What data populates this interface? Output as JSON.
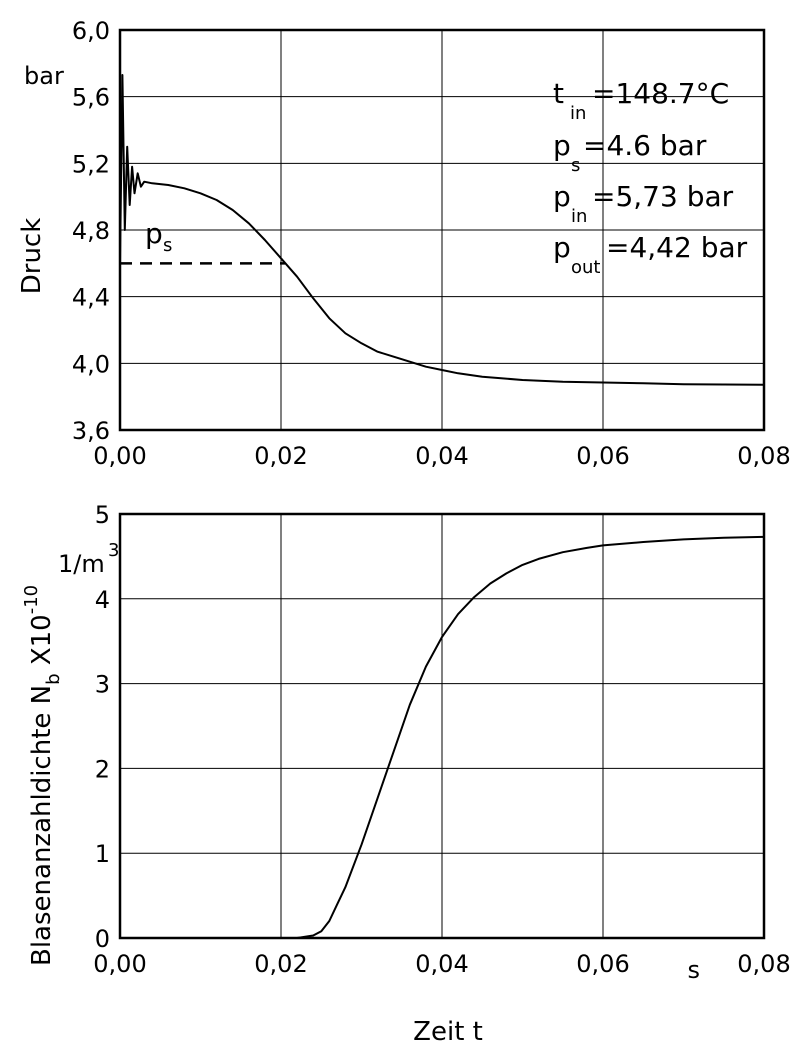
{
  "chart_data": [
    {
      "type": "line",
      "ylabel": "Druck",
      "yunit": "bar",
      "xlim": [
        0,
        0.08
      ],
      "ylim": [
        3.6,
        6.0
      ],
      "xticks": [
        "0,00",
        "0,02",
        "0,04",
        "0,06",
        "0,08"
      ],
      "yticks": [
        "3,6",
        "4,0",
        "4,4",
        "4,8",
        "5,2",
        "5,6",
        "6,0"
      ],
      "ps_label": {
        "base": "p",
        "sub": "s"
      },
      "ps_value": 4.6,
      "annotations": [
        {
          "base": "t",
          "sub": "in",
          "rest": "=148.7°C"
        },
        {
          "base": "p",
          "sub": "s",
          "rest": "=4.6 bar"
        },
        {
          "base": "p",
          "sub": "in",
          "rest": "=5,73 bar"
        },
        {
          "base": "p",
          "sub": "out",
          "rest": "=4,42 bar"
        }
      ],
      "series": [
        {
          "x": [
            0.0,
            0.0003,
            0.0006,
            0.0009,
            0.0012,
            0.0015,
            0.0018,
            0.0022,
            0.0026,
            0.003,
            0.004,
            0.006,
            0.008,
            0.01,
            0.012,
            0.014,
            0.016,
            0.018,
            0.02,
            0.022,
            0.024,
            0.026,
            0.028,
            0.03,
            0.032,
            0.034,
            0.036,
            0.038,
            0.04,
            0.042,
            0.045,
            0.05,
            0.055,
            0.06,
            0.065,
            0.07,
            0.075,
            0.08
          ],
          "y": [
            4.6,
            5.73,
            4.8,
            5.3,
            4.95,
            5.18,
            5.02,
            5.14,
            5.06,
            5.09,
            5.08,
            5.07,
            5.05,
            5.02,
            4.98,
            4.92,
            4.84,
            4.74,
            4.63,
            4.52,
            4.39,
            4.27,
            4.18,
            4.12,
            4.07,
            4.04,
            4.01,
            3.98,
            3.96,
            3.94,
            3.92,
            3.9,
            3.89,
            3.885,
            3.88,
            3.875,
            3.873,
            3.872
          ]
        }
      ]
    },
    {
      "type": "line",
      "ylabel_parts": {
        "text": "Blasenanzahldichte N",
        "sub": "b",
        "mid": " X10",
        "sup": "-10"
      },
      "yunit": {
        "base": "1/m",
        "sup": "3"
      },
      "xlabel": "Zeit t",
      "xunit": "s",
      "xlim": [
        0,
        0.08
      ],
      "ylim": [
        0,
        5
      ],
      "xticks": [
        "0,00",
        "0,02",
        "0,04",
        "0,06",
        "0,08"
      ],
      "yticks": [
        "0",
        "1",
        "2",
        "3",
        "4",
        "5"
      ],
      "series": [
        {
          "x": [
            0.0,
            0.02,
            0.022,
            0.024,
            0.025,
            0.026,
            0.027,
            0.028,
            0.03,
            0.032,
            0.034,
            0.036,
            0.038,
            0.04,
            0.042,
            0.044,
            0.046,
            0.048,
            0.05,
            0.052,
            0.055,
            0.058,
            0.06,
            0.065,
            0.07,
            0.075,
            0.08
          ],
          "y": [
            0.0,
            0.0,
            0.0,
            0.03,
            0.08,
            0.2,
            0.4,
            0.6,
            1.1,
            1.65,
            2.2,
            2.75,
            3.2,
            3.55,
            3.82,
            4.02,
            4.18,
            4.3,
            4.4,
            4.47,
            4.55,
            4.6,
            4.63,
            4.67,
            4.7,
            4.72,
            4.73
          ]
        }
      ]
    }
  ]
}
